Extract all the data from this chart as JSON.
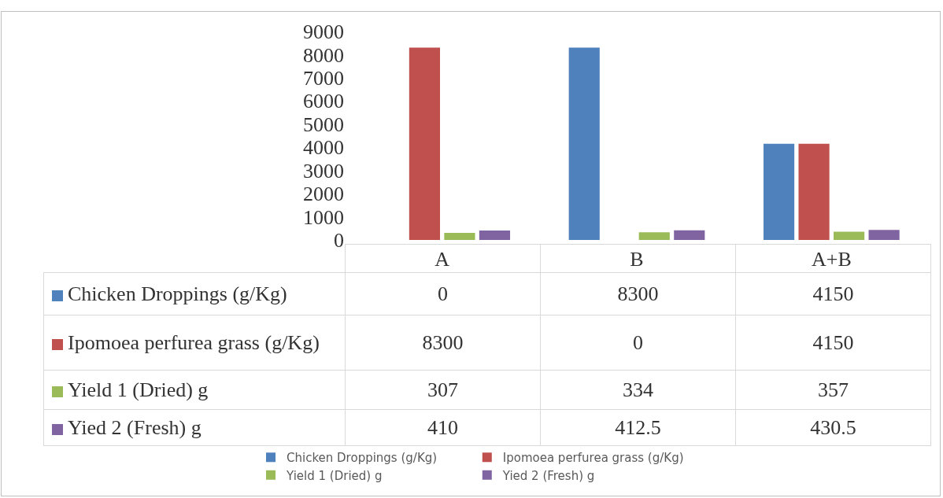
{
  "chart_data": {
    "type": "bar",
    "categories": [
      "A",
      "B",
      "A+B"
    ],
    "series": [
      {
        "name": "Chicken Droppings (g/Kg)",
        "color": "#4f81bd",
        "values": [
          0,
          8300,
          4150
        ]
      },
      {
        "name": "Ipomoea perfurea grass (g/Kg)",
        "color": "#c0504d",
        "values": [
          8300,
          0,
          4150
        ]
      },
      {
        "name": "Yield 1 (Dried) g",
        "color": "#9bbb59",
        "values": [
          307,
          334,
          357
        ]
      },
      {
        "name": "Yied 2 (Fresh) g",
        "color": "#8064a2",
        "values": [
          410,
          412.5,
          430.5
        ]
      }
    ],
    "ylim": [
      0,
      9000
    ],
    "yticks": [
      0,
      1000,
      2000,
      3000,
      4000,
      5000,
      6000,
      7000,
      8000,
      9000
    ],
    "data_labels": true,
    "legend": "bottom"
  }
}
